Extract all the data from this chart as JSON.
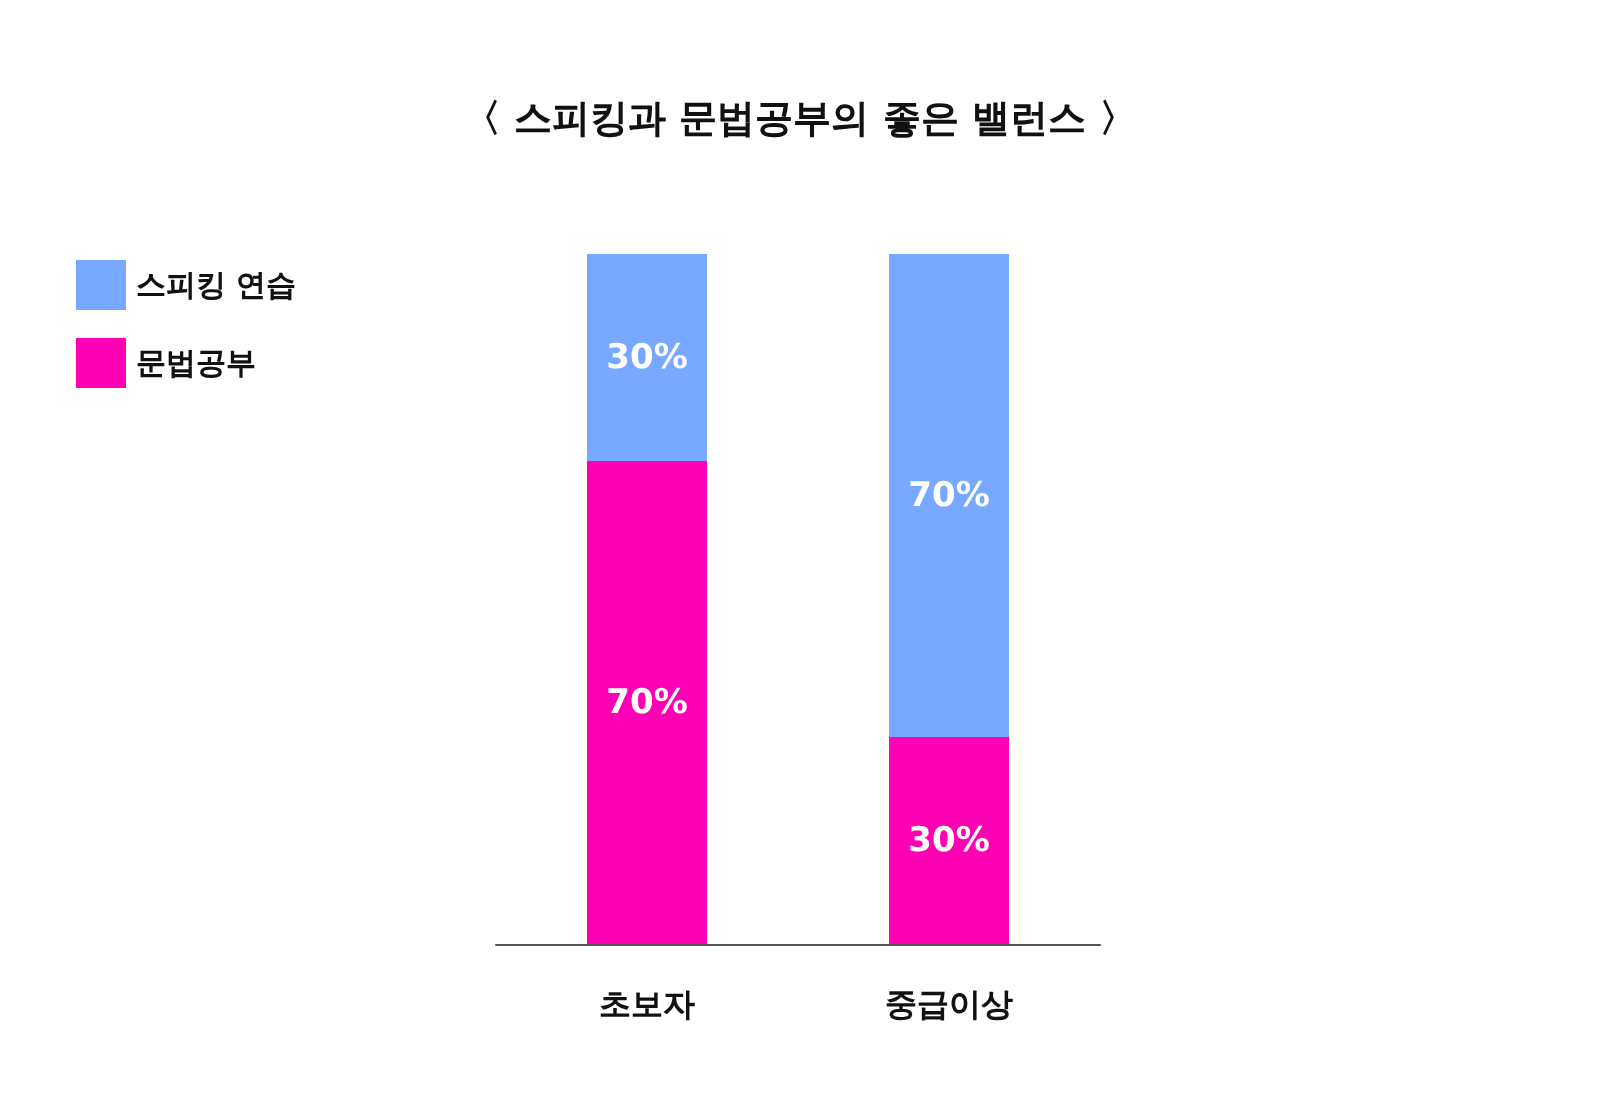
{
  "chart_data": {
    "type": "bar",
    "title": "〈 스피킹과 문법공부의 좋은 밸런스 〉",
    "categories": [
      "초보자",
      "중급이상"
    ],
    "stacked": true,
    "legend": "top left",
    "grid": false,
    "series": [
      {
        "name": "문법공부",
        "color": "#ff00b4",
        "values": [
          70,
          30
        ],
        "value_labels": [
          "70%",
          "30%"
        ]
      },
      {
        "name": "스피킹 연습",
        "color": "#78a8ff",
        "values": [
          30,
          70
        ],
        "value_labels": [
          "30%",
          "70%"
        ]
      }
    ]
  }
}
